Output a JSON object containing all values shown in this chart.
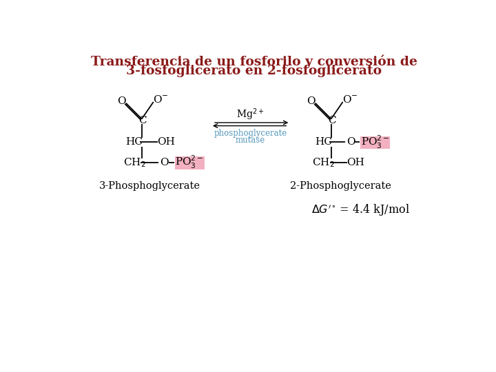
{
  "title_line1": "Transferencia de un fosforilo y conversión de",
  "title_line2": "3-fosfoglicerato en 2-fosfoglicerato",
  "title_color": "#8B1A1A",
  "title_fontsize": 13.5,
  "bg_color": "#FFFFFF",
  "pink_bg": "#F2B0C0",
  "mg_text": "Mg$^{2+}$",
  "enzyme_line1": "phosphoglycerate",
  "enzyme_line2": "mutase",
  "enzyme_color": "#5599BB",
  "label_left": "3-Phosphoglycerate",
  "label_right": "2-Phosphoglycerate",
  "fs": 11,
  "lw": 1.3
}
